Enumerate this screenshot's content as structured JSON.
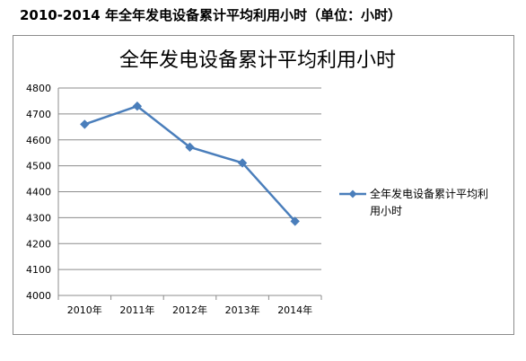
{
  "page": {
    "title": "2010-2014 年全年发电设备累计平均利用小时（单位：小时）"
  },
  "chart_data": {
    "type": "line",
    "title": "全年发电设备累计平均利用小时",
    "categories": [
      "2010年",
      "2011年",
      "2012年",
      "2013年",
      "2014年"
    ],
    "series": [
      {
        "name": "全年发电设备累计平均利用小时",
        "values": [
          4660,
          4730,
          4572,
          4511,
          4286
        ],
        "color": "#4a7ebb",
        "marker": "diamond"
      }
    ],
    "ylim": [
      4000,
      4800
    ],
    "yticks": [
      4000,
      4100,
      4200,
      4300,
      4400,
      4500,
      4600,
      4700,
      4800
    ],
    "xlabel": "",
    "ylabel": "",
    "grid": "horizontal",
    "legend": "right",
    "legend_lines": [
      "全年发电设备累计平均利",
      "用小时"
    ]
  }
}
